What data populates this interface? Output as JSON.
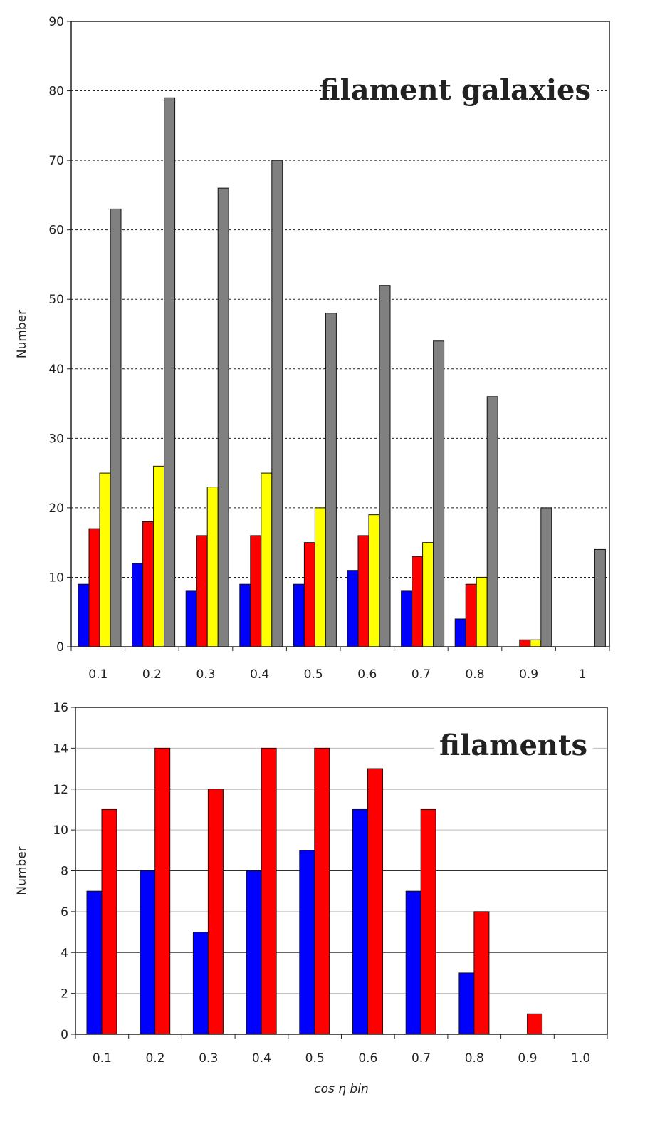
{
  "chart_data": [
    {
      "type": "bar",
      "title": "filament galaxies",
      "ylabel": "Number",
      "xlabel": "",
      "ylim": [
        0,
        90
      ],
      "yticks": [
        0,
        10,
        20,
        30,
        40,
        50,
        60,
        70,
        80,
        90
      ],
      "categories": [
        "0.1",
        "0.2",
        "0.3",
        "0.4",
        "0.5",
        "0.6",
        "0.7",
        "0.8",
        "0.9",
        "1"
      ],
      "grid": true,
      "series": [
        {
          "color": "#0000ff",
          "values": [
            9,
            12,
            8,
            9,
            9,
            11,
            8,
            4,
            0,
            0
          ]
        },
        {
          "color": "#ff0000",
          "values": [
            17,
            18,
            16,
            16,
            15,
            16,
            13,
            9,
            1,
            0
          ]
        },
        {
          "color": "#ffff00",
          "values": [
            25,
            26,
            23,
            25,
            20,
            19,
            15,
            10,
            1,
            0
          ]
        },
        {
          "color": "#808080",
          "values": [
            63,
            79,
            66,
            70,
            48,
            52,
            44,
            36,
            20,
            14
          ]
        }
      ]
    },
    {
      "type": "bar",
      "title": "filaments",
      "ylabel": "Number",
      "xlabel": "cos η bin",
      "ylim": [
        0,
        16
      ],
      "yticks": [
        0,
        2,
        4,
        6,
        8,
        10,
        12,
        14,
        16
      ],
      "categories": [
        "0.1",
        "0.2",
        "0.3",
        "0.4",
        "0.5",
        "0.6",
        "0.7",
        "0.8",
        "0.9",
        "1.0"
      ],
      "grid": true,
      "series": [
        {
          "color": "#0000ff",
          "values": [
            7,
            8,
            5,
            8,
            9,
            11,
            7,
            3,
            0,
            0
          ]
        },
        {
          "color": "#ff0000",
          "values": [
            11,
            14,
            12,
            14,
            14,
            13,
            11,
            6,
            1,
            0
          ]
        }
      ]
    }
  ]
}
